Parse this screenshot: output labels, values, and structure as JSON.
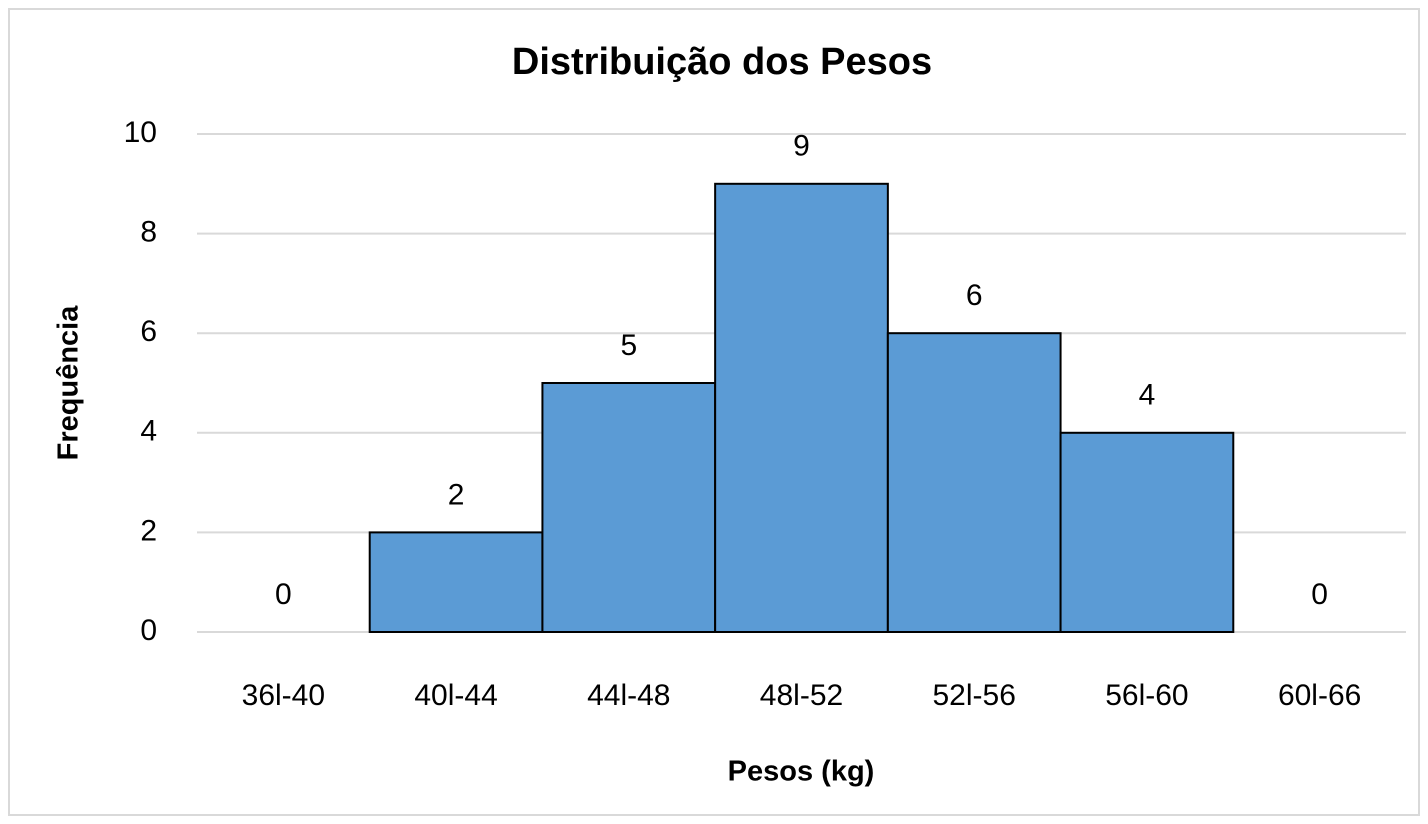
{
  "chart_data": {
    "type": "bar",
    "title": "Distribuição dos Pesos",
    "x_label": "Pesos (kg)",
    "y_label": "Frequência",
    "categories": [
      "36l-40",
      "40l-44",
      "44l-48",
      "48l-52",
      "52l-56",
      "56l-60",
      "60l-66"
    ],
    "values": [
      0,
      2,
      5,
      9,
      6,
      4,
      0
    ],
    "color": "#5b9bd5",
    "ylim": [
      0,
      10
    ],
    "yticks": [
      0,
      2,
      4,
      6,
      8,
      10
    ],
    "grid": true
  }
}
